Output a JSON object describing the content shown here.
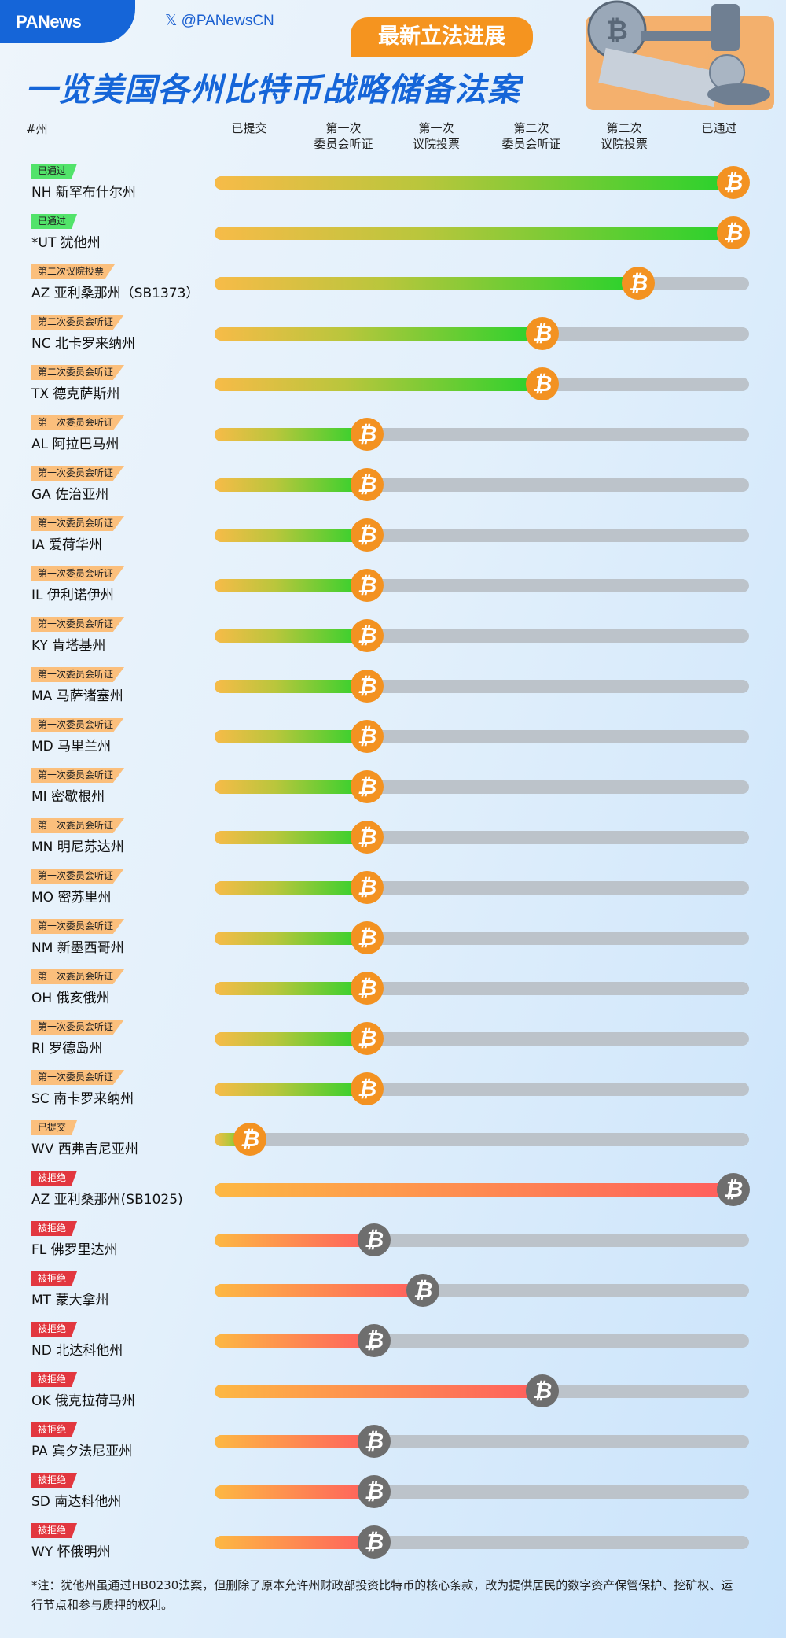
{
  "header": {
    "brand": "PANews",
    "handle": "𝕏 @PANewsCN",
    "badge": "最新立法进展",
    "title": "一览美国各州比特币战略储备法案"
  },
  "colors": {
    "brand_blue": "#1565d8",
    "badge_orange": "#f5941f",
    "passed_green": "#27d22c",
    "rejected_red": "#e2373f",
    "coin_active": "#f39221",
    "coin_rejected": "#6e6e6e",
    "track_gray": "#bcc3ca"
  },
  "chart_data": {
    "type": "table",
    "title": "一览美国各州比特币战略储备法案",
    "state_column_label": "#州",
    "stages": [
      {
        "line1": "已提交",
        "line2": ""
      },
      {
        "line1": "第一次",
        "line2": "委员会听证"
      },
      {
        "line1": "第一次",
        "line2": "议院投票"
      },
      {
        "line1": "第二次",
        "line2": "委员会听证"
      },
      {
        "line1": "第二次",
        "line2": "议院投票"
      },
      {
        "line1": "已通过",
        "line2": ""
      }
    ],
    "stage_scale": "1 = 已提交 … 6 = 已通过",
    "rows": [
      {
        "status": "已通过",
        "tag": "green",
        "name": "NH 新罕布什尔州",
        "stage": 6,
        "rejected": false
      },
      {
        "status": "已通过",
        "tag": "green",
        "name": "*UT 犹他州",
        "stage": 6,
        "rejected": false
      },
      {
        "status": "第二次议院投票",
        "tag": "orange",
        "name": "AZ 亚利桑那州（SB1373）",
        "stage": 5,
        "rejected": false
      },
      {
        "status": "第二次委员会听证",
        "tag": "orange",
        "name": "NC 北卡罗来纳州",
        "stage": 4,
        "rejected": false
      },
      {
        "status": "第二次委员会听证",
        "tag": "orange",
        "name": "TX 德克萨斯州",
        "stage": 4,
        "rejected": false
      },
      {
        "status": "第一次委员会听证",
        "tag": "orange",
        "name": "AL 阿拉巴马州",
        "stage": 2,
        "rejected": false
      },
      {
        "status": "第一次委员会听证",
        "tag": "orange",
        "name": "GA 佐治亚州",
        "stage": 2,
        "rejected": false
      },
      {
        "status": "第一次委员会听证",
        "tag": "orange",
        "name": "IA 爱荷华州",
        "stage": 2,
        "rejected": false
      },
      {
        "status": "第一次委员会听证",
        "tag": "orange",
        "name": "IL 伊利诺伊州",
        "stage": 2,
        "rejected": false
      },
      {
        "status": "第一次委员会听证",
        "tag": "orange",
        "name": "KY 肯塔基州",
        "stage": 2,
        "rejected": false
      },
      {
        "status": "第一次委员会听证",
        "tag": "orange",
        "name": "MA 马萨诸塞州",
        "stage": 2,
        "rejected": false
      },
      {
        "status": "第一次委员会听证",
        "tag": "orange",
        "name": "MD 马里兰州",
        "stage": 2,
        "rejected": false
      },
      {
        "status": "第一次委员会听证",
        "tag": "orange",
        "name": "MI 密歇根州",
        "stage": 2,
        "rejected": false
      },
      {
        "status": "第一次委员会听证",
        "tag": "orange",
        "name": "MN 明尼苏达州",
        "stage": 2,
        "rejected": false
      },
      {
        "status": "第一次委员会听证",
        "tag": "orange",
        "name": "MO 密苏里州",
        "stage": 2,
        "rejected": false
      },
      {
        "status": "第一次委员会听证",
        "tag": "orange",
        "name": "NM 新墨西哥州",
        "stage": 2,
        "rejected": false
      },
      {
        "status": "第一次委员会听证",
        "tag": "orange",
        "name": "OH 俄亥俄州",
        "stage": 2,
        "rejected": false
      },
      {
        "status": "第一次委员会听证",
        "tag": "orange",
        "name": "RI 罗德岛州",
        "stage": 2,
        "rejected": false
      },
      {
        "status": "第一次委员会听证",
        "tag": "orange",
        "name": "SC 南卡罗来纳州",
        "stage": 2,
        "rejected": false
      },
      {
        "status": "已提交",
        "tag": "orange",
        "name": "WV 西弗吉尼亚州",
        "stage": 1,
        "rejected": false
      },
      {
        "status": "被拒绝",
        "tag": "red",
        "name": "AZ 亚利桑那州(SB1025)",
        "stage": 6,
        "rejected": true
      },
      {
        "status": "被拒绝",
        "tag": "red",
        "name": "FL 佛罗里达州",
        "stage": 2.1,
        "rejected": true
      },
      {
        "status": "被拒绝",
        "tag": "red",
        "name": "MT 蒙大拿州",
        "stage": 2.8,
        "rejected": true
      },
      {
        "status": "被拒绝",
        "tag": "red",
        "name": "ND 北达科他州",
        "stage": 2.1,
        "rejected": true
      },
      {
        "status": "被拒绝",
        "tag": "red",
        "name": "OK 俄克拉荷马州",
        "stage": 4,
        "rejected": true
      },
      {
        "status": "被拒绝",
        "tag": "red",
        "name": "PA 宾夕法尼亚州",
        "stage": 2.1,
        "rejected": true
      },
      {
        "status": "被拒绝",
        "tag": "red",
        "name": "SD 南达科他州",
        "stage": 2.1,
        "rejected": true
      },
      {
        "status": "被拒绝",
        "tag": "red",
        "name": "WY 怀俄明州",
        "stage": 2.1,
        "rejected": true
      }
    ]
  },
  "coin_symbol": "₿",
  "footnote": "*注：犹他州虽通过HB0230法案，但删除了原本允许州财政部投资比特币的核心条款，改为提供居民的数字资产保管保护、挖矿权、运行节点和参与质押的权利。"
}
